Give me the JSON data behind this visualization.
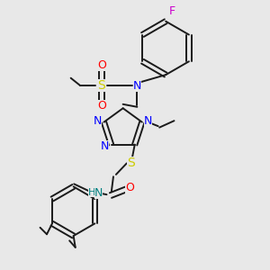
{
  "fig_bg": "#e8e8e8",
  "bond_color": "#1a1a1a",
  "lw": 1.4,
  "fs": 8,
  "colors": {
    "N": "#0000ff",
    "O": "#ff0000",
    "S": "#cccc00",
    "F": "#cc00cc",
    "NH": "#008080",
    "C": "#1a1a1a"
  }
}
